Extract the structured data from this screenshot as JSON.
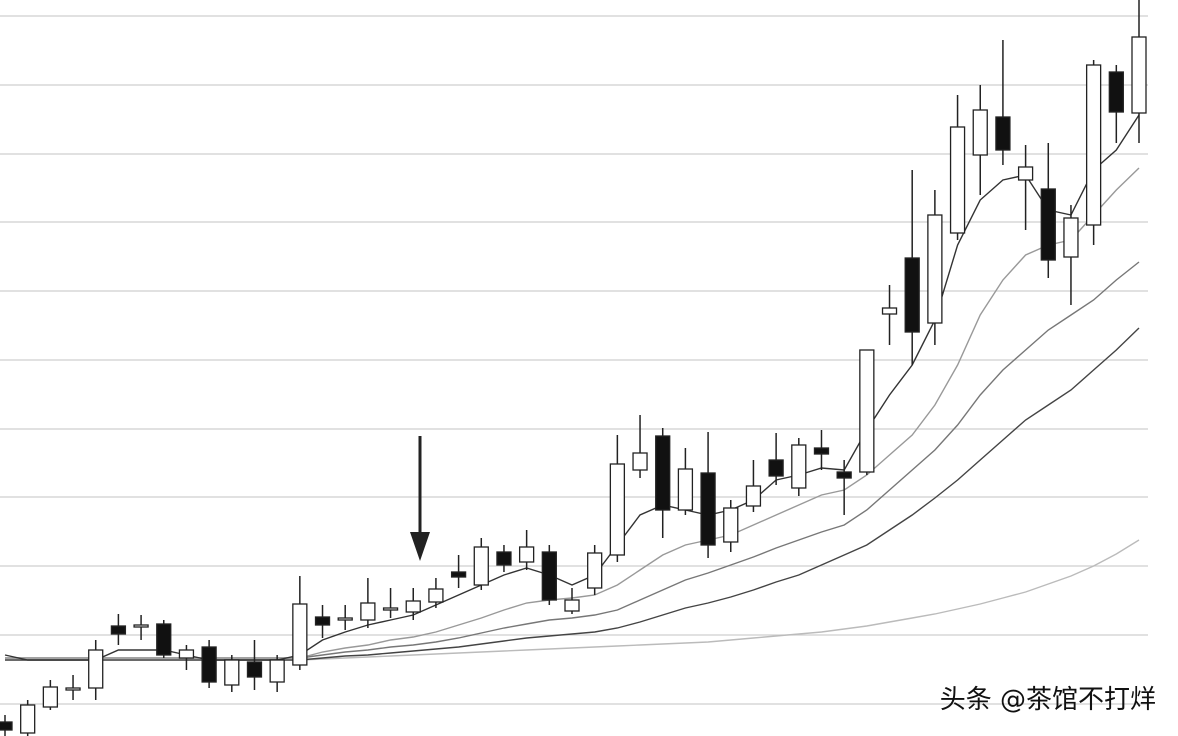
{
  "chart_data": {
    "type": "candlestick",
    "ylim": [
      0,
      736
    ],
    "yticks": [
      32,
      101,
      170,
      239,
      307,
      376,
      445,
      514,
      582,
      651,
      720
    ],
    "grid": true,
    "up_color": "#ffffff",
    "down_color": "#111111",
    "open": [
      14,
      3,
      29,
      48,
      48,
      110,
      111,
      112,
      78,
      89,
      51,
      74,
      54,
      71,
      119,
      118,
      116,
      128,
      124,
      134,
      164,
      151,
      184,
      174,
      184,
      125,
      148,
      181,
      266,
      300,
      226,
      263,
      194,
      230,
      276,
      248,
      288,
      264,
      264,
      422,
      478,
      413,
      503,
      581,
      619,
      556,
      547,
      479,
      511,
      664,
      623
    ],
    "high": [
      21,
      36,
      56,
      61,
      96,
      122,
      121,
      116,
      91,
      96,
      81,
      96,
      81,
      160,
      131,
      131,
      158,
      148,
      148,
      158,
      181,
      198,
      191,
      206,
      191,
      148,
      191,
      301,
      321,
      308,
      288,
      304,
      236,
      276,
      303,
      298,
      306,
      276,
      386,
      451,
      566,
      546,
      641,
      651,
      696,
      591,
      593,
      531,
      676,
      671,
      736
    ],
    "low": [
      0,
      0,
      26,
      36,
      36,
      91,
      96,
      78,
      66,
      48,
      44,
      46,
      44,
      66,
      98,
      106,
      108,
      118,
      116,
      128,
      148,
      146,
      164,
      166,
      131,
      122,
      141,
      174,
      258,
      198,
      221,
      178,
      184,
      224,
      251,
      240,
      266,
      221,
      261,
      391,
      371,
      391,
      496,
      541,
      571,
      506,
      458,
      431,
      491,
      593,
      593
    ],
    "close": [
      6,
      31,
      49,
      48,
      86,
      102,
      111,
      81,
      86,
      54,
      76,
      59,
      76,
      132,
      111,
      118,
      133,
      128,
      135,
      147,
      159,
      189,
      171,
      189,
      136,
      136,
      183,
      272,
      283,
      226,
      267,
      191,
      228,
      250,
      260,
      291,
      282,
      258,
      386,
      428,
      404,
      521,
      609,
      626,
      586,
      569,
      476,
      518,
      671,
      624,
      699
    ],
    "lines": [
      {
        "color": "#bbbbbb",
        "values": [
          76,
          76,
          76,
          76,
          76,
          76,
          76,
          76,
          76,
          76,
          76,
          76,
          76,
          76,
          77,
          78,
          79,
          80,
          81,
          82,
          83,
          84,
          85,
          86,
          87,
          88,
          89,
          90,
          91,
          92,
          93,
          94,
          96,
          98,
          100,
          102,
          104,
          107,
          110,
          114,
          118,
          122,
          127,
          132,
          138,
          144,
          152,
          160,
          170,
          182,
          196
        ]
      },
      {
        "color": "#444444",
        "values": [
          76,
          76,
          76,
          76,
          76,
          76,
          76,
          76,
          76,
          76,
          76,
          76,
          76,
          76,
          78,
          80,
          81,
          83,
          85,
          87,
          89,
          92,
          95,
          98,
          100,
          102,
          104,
          108,
          114,
          121,
          128,
          133,
          139,
          146,
          154,
          161,
          171,
          181,
          191,
          206,
          221,
          238,
          256,
          276,
          296,
          316,
          331,
          346,
          366,
          386,
          408
        ]
      },
      {
        "color": "#777777",
        "values": [
          78,
          78,
          78,
          78,
          78,
          78,
          78,
          78,
          78,
          78,
          78,
          78,
          78,
          78,
          81,
          84,
          86,
          89,
          91,
          94,
          98,
          103,
          108,
          112,
          116,
          118,
          121,
          126,
          136,
          146,
          156,
          163,
          171,
          179,
          188,
          196,
          204,
          211,
          226,
          246,
          266,
          286,
          311,
          341,
          366,
          386,
          406,
          421,
          436,
          456,
          474
        ]
      },
      {
        "color": "#999999",
        "values": [
          78,
          78,
          78,
          78,
          78,
          78,
          78,
          78,
          78,
          78,
          78,
          78,
          78,
          78,
          84,
          88,
          91,
          96,
          99,
          104,
          111,
          118,
          126,
          133,
          136,
          138,
          141,
          151,
          166,
          181,
          191,
          196,
          201,
          211,
          221,
          231,
          241,
          246,
          261,
          281,
          301,
          331,
          371,
          421,
          456,
          481,
          491,
          496,
          521,
          546,
          568
        ]
      },
      {
        "color": "#333333",
        "values": [
          81,
          76,
          76,
          76,
          76,
          86,
          86,
          86,
          81,
          76,
          76,
          76,
          76,
          81,
          96,
          104,
          111,
          116,
          121,
          131,
          141,
          151,
          161,
          168,
          161,
          151,
          161,
          191,
          221,
          231,
          226,
          221,
          226,
          236,
          256,
          261,
          268,
          266,
          306,
          341,
          371,
          416,
          491,
          536,
          556,
          561,
          526,
          521,
          566,
          586,
          621
        ]
      }
    ],
    "watermark": "头条 @茶馆不打烊"
  }
}
